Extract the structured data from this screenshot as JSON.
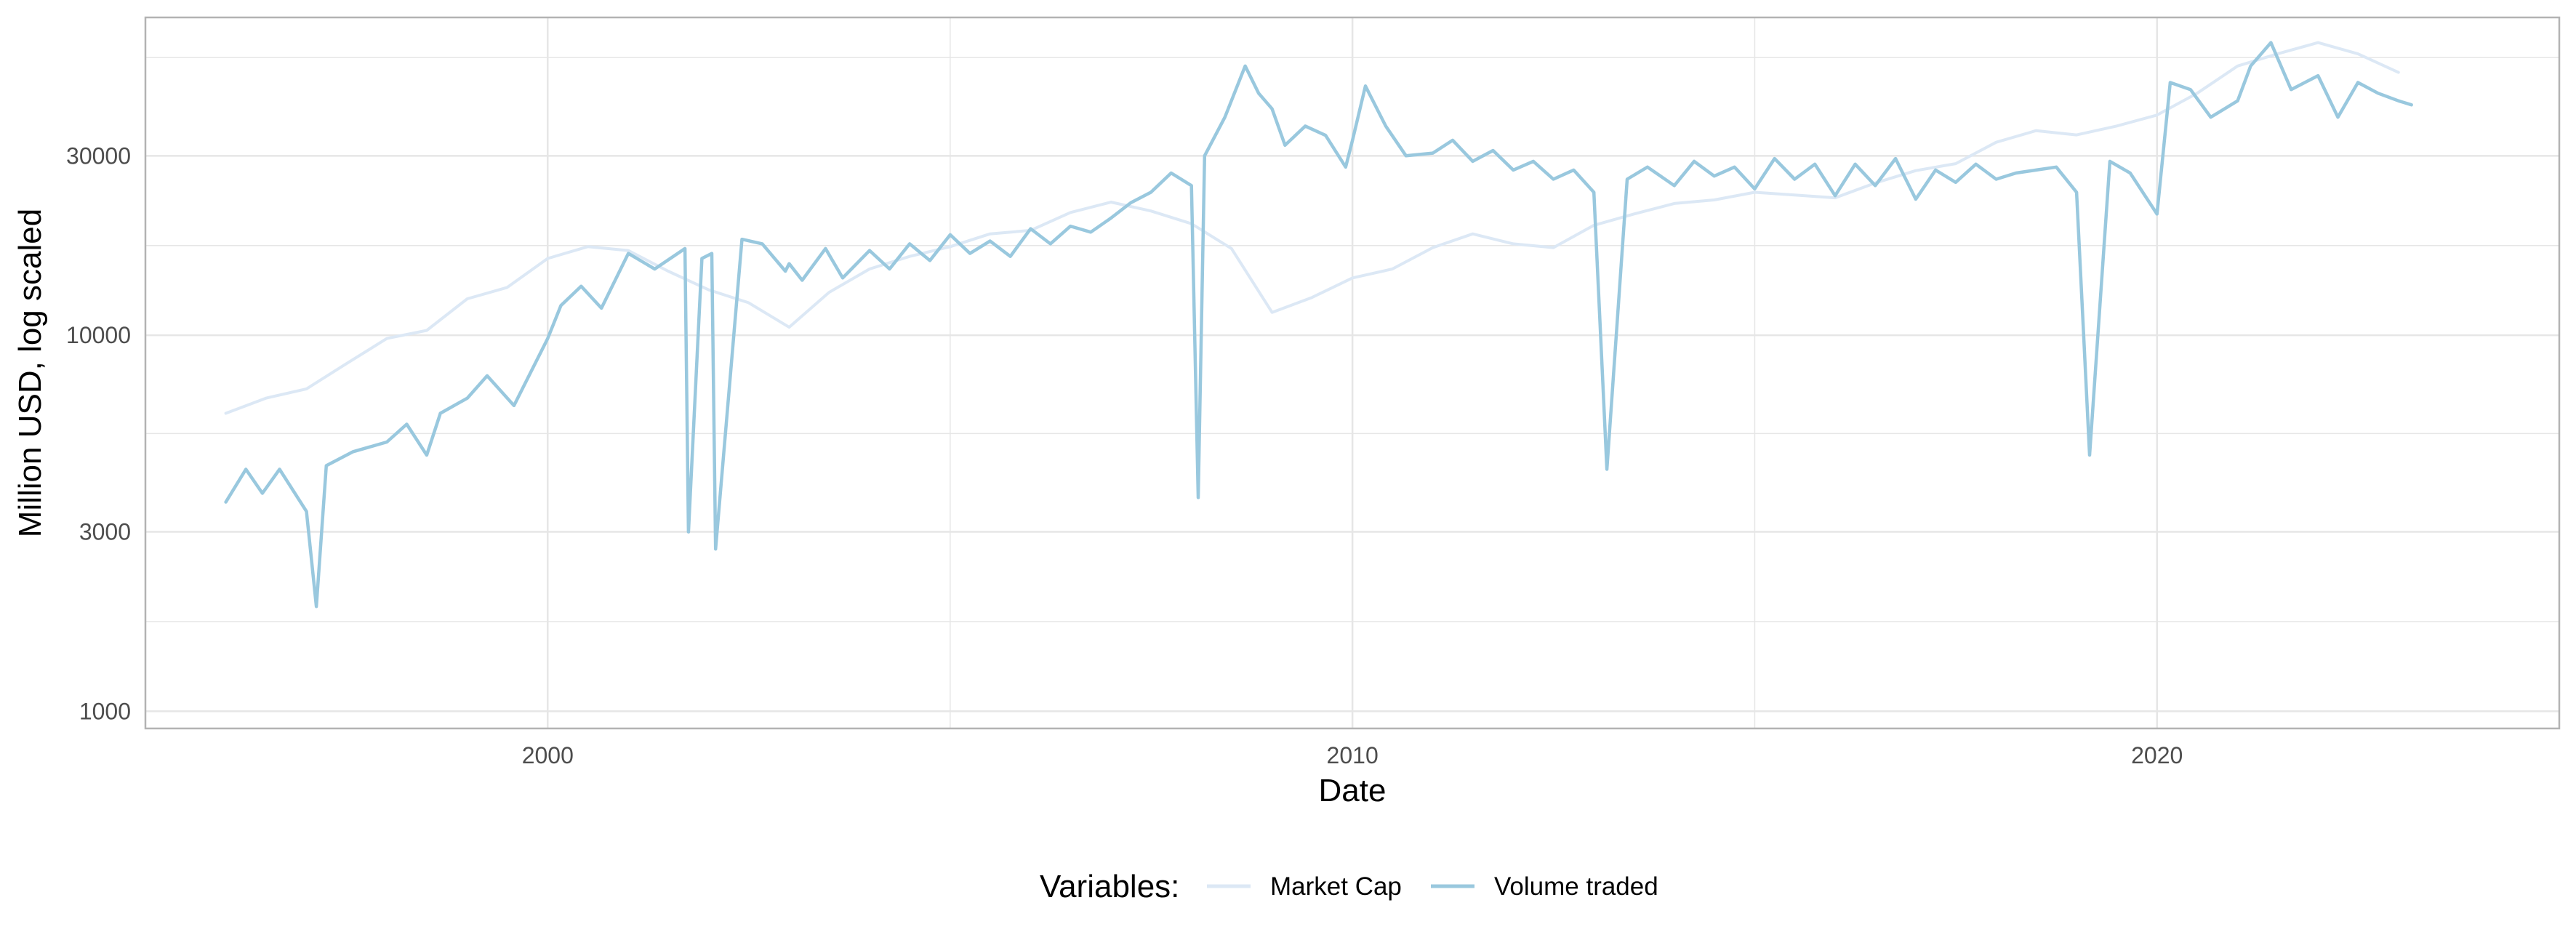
{
  "chart_data": {
    "type": "line",
    "xlabel": "Date",
    "ylabel": "Million USD, log scaled",
    "yscale": "log",
    "xlim": [
      "1995-01-01",
      "2024-12-31"
    ],
    "ylim": [
      900,
      70000
    ],
    "x_ticks": [
      "2000",
      "2010",
      "2020"
    ],
    "y_ticks": [
      1000,
      3000,
      10000,
      30000
    ],
    "grid": true,
    "legend": {
      "title": "Variables:",
      "position": "bottom"
    },
    "colors": {
      "market_cap": "#dce8f5",
      "volume": "#99c8de",
      "grid": "#e6e6e6",
      "panel_border": "#b3b3b3"
    },
    "series": [
      {
        "name": "Market Cap",
        "x": [
          "1996-01-01",
          "1996-07-01",
          "1997-01-01",
          "1997-07-01",
          "1998-01-01",
          "1998-07-01",
          "1999-01-01",
          "1999-07-01",
          "2000-01-01",
          "2000-07-01",
          "2001-01-01",
          "2001-07-01",
          "2002-01-01",
          "2002-07-01",
          "2003-01-01",
          "2003-07-01",
          "2004-01-01",
          "2004-07-01",
          "2005-01-01",
          "2005-07-01",
          "2006-01-01",
          "2006-07-01",
          "2007-01-01",
          "2007-07-01",
          "2008-01-01",
          "2008-07-01",
          "2009-01-01",
          "2009-07-01",
          "2010-01-01",
          "2010-07-01",
          "2011-01-01",
          "2011-07-01",
          "2012-01-01",
          "2012-07-01",
          "2013-01-01",
          "2013-07-01",
          "2014-01-01",
          "2014-07-01",
          "2015-01-01",
          "2015-07-01",
          "2016-01-01",
          "2016-07-01",
          "2017-01-01",
          "2017-07-01",
          "2018-01-01",
          "2018-07-01",
          "2019-01-01",
          "2019-07-01",
          "2020-01-01",
          "2020-07-01",
          "2021-01-01",
          "2021-07-01",
          "2022-01-01",
          "2022-07-01",
          "2023-01-01"
        ],
        "values": [
          6200,
          6800,
          7200,
          8400,
          9800,
          10300,
          12500,
          13400,
          16000,
          17200,
          16800,
          14800,
          13200,
          12200,
          10500,
          13000,
          15000,
          16200,
          17200,
          18600,
          19000,
          21200,
          22600,
          21400,
          19800,
          17000,
          11500,
          12600,
          14200,
          15000,
          17100,
          18600,
          17500,
          17100,
          19600,
          21000,
          22400,
          22900,
          24000,
          23600,
          23200,
          25400,
          27400,
          28600,
          32600,
          35000,
          34100,
          36000,
          38500,
          44000,
          52000,
          56000,
          60000,
          56000,
          50000
        ]
      },
      {
        "name": "Volume traded",
        "x": [
          "1996-01-01",
          "1996-04-01",
          "1996-06-15",
          "1996-09-01",
          "1997-01-01",
          "1997-02-15",
          "1997-04-01",
          "1997-08-01",
          "1998-01-01",
          "1998-04-01",
          "1998-07-01",
          "1998-09-01",
          "1999-01-01",
          "1999-04-01",
          "1999-08-01",
          "2000-01-01",
          "2000-03-01",
          "2000-06-01",
          "2000-09-01",
          "2001-01-01",
          "2001-05-01",
          "2001-09-15",
          "2001-10-01",
          "2001-12-01",
          "2002-01-15",
          "2002-02-01",
          "2002-06-01",
          "2002-09-01",
          "2002-12-15",
          "2003-01-01",
          "2003-03-01",
          "2003-06-15",
          "2003-09-01",
          "2004-01-01",
          "2004-04-01",
          "2004-07-01",
          "2004-10-01",
          "2005-01-01",
          "2005-04-01",
          "2005-07-01",
          "2005-10-01",
          "2006-01-01",
          "2006-04-01",
          "2006-07-01",
          "2006-10-01",
          "2007-01-01",
          "2007-04-01",
          "2007-07-01",
          "2007-10-01",
          "2008-01-01",
          "2008-02-01",
          "2008-03-01",
          "2008-06-01",
          "2008-09-01",
          "2008-11-01",
          "2009-01-01",
          "2009-03-01",
          "2009-06-01",
          "2009-09-01",
          "2009-12-01",
          "2010-01-01",
          "2010-03-01",
          "2010-06-01",
          "2010-09-01",
          "2011-01-01",
          "2011-04-01",
          "2011-07-01",
          "2011-10-01",
          "2012-01-01",
          "2012-04-01",
          "2012-07-01",
          "2012-10-01",
          "2013-01-01",
          "2013-03-01",
          "2013-06-01",
          "2013-09-01",
          "2014-01-01",
          "2014-04-01",
          "2014-07-01",
          "2014-10-01",
          "2015-01-01",
          "2015-04-01",
          "2015-07-01",
          "2015-10-01",
          "2016-01-01",
          "2016-04-01",
          "2016-07-01",
          "2016-10-01",
          "2017-01-01",
          "2017-04-01",
          "2017-07-01",
          "2017-10-01",
          "2018-01-01",
          "2018-04-01",
          "2018-07-01",
          "2018-10-01",
          "2019-01-01",
          "2019-03-01",
          "2019-06-01",
          "2019-09-01",
          "2020-01-01",
          "2020-03-01",
          "2020-06-01",
          "2020-09-01",
          "2021-01-01",
          "2021-03-01",
          "2021-06-01",
          "2021-09-01",
          "2022-01-01",
          "2022-04-01",
          "2022-07-01",
          "2022-10-01",
          "2023-01-01",
          "2023-03-01"
        ],
        "values": [
          3600,
          4400,
          3800,
          4400,
          3400,
          1900,
          4500,
          4900,
          5200,
          5800,
          4800,
          6200,
          6800,
          7800,
          6500,
          9800,
          12000,
          13500,
          11800,
          16500,
          15000,
          17000,
          3000,
          16000,
          16500,
          2700,
          18000,
          17500,
          14800,
          15500,
          14000,
          17000,
          14200,
          16800,
          15000,
          17500,
          15800,
          18500,
          16500,
          17800,
          16200,
          19200,
          17500,
          19500,
          18800,
          20500,
          22500,
          24000,
          27000,
          25000,
          3700,
          30000,
          38000,
          52000,
          44000,
          40000,
          32000,
          36000,
          34000,
          28000,
          33000,
          46000,
          36000,
          30000,
          30500,
          33000,
          29000,
          31000,
          27500,
          29000,
          26000,
          27500,
          24000,
          4400,
          26000,
          28000,
          25000,
          29000,
          26500,
          28000,
          24500,
          29500,
          26000,
          28500,
          23500,
          28500,
          25000,
          29500,
          23000,
          27500,
          25500,
          28500,
          26000,
          27000,
          27500,
          28000,
          24000,
          4800,
          29000,
          27000,
          21000,
          47000,
          45000,
          38000,
          42000,
          52000,
          60000,
          45000,
          49000,
          38000,
          47000,
          44000,
          42000,
          41000
        ]
      }
    ]
  }
}
